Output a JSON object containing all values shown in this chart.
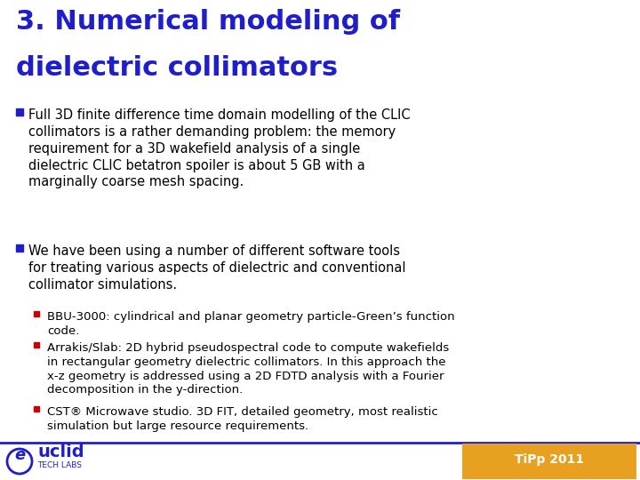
{
  "title_line1": "3. Numerical modeling of",
  "title_line2": "dielectric collimators",
  "title_color": "#1E1ECC",
  "title_fontsize": 22,
  "bg_color": "#FFFFFF",
  "bullet1_text": "Full 3D finite difference time domain modelling of the CLIC\ncollimators is a rather demanding problem: the memory\nrequirement for a 3D wakefield analysis of a single\ndielectric CLIC betatron spoiler is about 5 GB with a\nmarginally coarse mesh spacing.",
  "bullet2_text": "We have been using a number of different software tools\nfor treating various aspects of dielectric and conventional\ncollimator simulations.",
  "sub_bullet1": "BBU-3000: cylindrical and planar geometry particle-Green’s function\ncode.",
  "sub_bullet2": "Arrakis/Slab: 2D hybrid pseudospectral code to compute wakefields\nin rectangular geometry dielectric collimators. In this approach the\nx-z geometry is addressed using a 2D FDTD analysis with a Fourier\ndecomposition in the y-direction.",
  "sub_bullet3": "CST® Microwave studio. 3D FIT, detailed geometry, most realistic\nsimulation but large resource requirements.",
  "bullet_color": "#1E1ECC",
  "sub_bullet_color": "#CC0000",
  "text_color": "#000000",
  "footer_line_color": "#1E1ECC",
  "body_fontsize": 10.5,
  "sub_fontsize": 9.5,
  "footer_bg": "#E8A020",
  "tipp_text": "TiPp 2011",
  "euclid_color": "#1E1ECC"
}
